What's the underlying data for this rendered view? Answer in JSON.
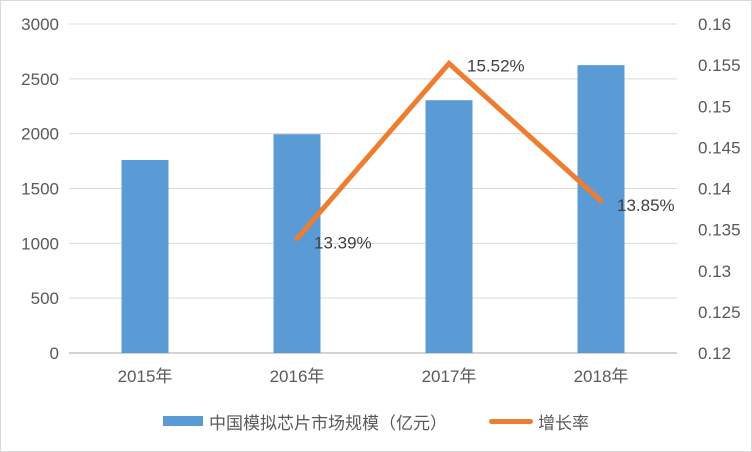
{
  "chart_data": {
    "type": "combo",
    "title": "",
    "categories": [
      "2015年",
      "2016年",
      "2017年",
      "2018年"
    ],
    "series": [
      {
        "name": "中国模拟芯片市场规模（亿元）",
        "type": "bar",
        "axis": "left",
        "color": "#5B9BD5",
        "values": [
          1760,
          1995,
          2305,
          2625
        ]
      },
      {
        "name": "增长率",
        "type": "line",
        "axis": "right",
        "color": "#ED7D31",
        "values": [
          null,
          0.1339,
          0.1552,
          0.1385
        ],
        "point_labels": [
          null,
          "13.39%",
          "15.52%",
          "13.85%"
        ]
      }
    ],
    "left_axis": {
      "range": [
        0,
        3000
      ],
      "ticks": [
        0,
        500,
        1000,
        1500,
        2000,
        2500,
        3000
      ]
    },
    "right_axis": {
      "range": [
        0.12,
        0.16
      ],
      "ticks": [
        0.12,
        0.125,
        0.13,
        0.135,
        0.14,
        0.145,
        0.15,
        0.155,
        0.16
      ]
    },
    "gridlines": "horizontal",
    "legend_position": "bottom"
  },
  "colors": {
    "bar": "#5B9BD5",
    "line": "#ED7D31",
    "grid": "#D9D9D9",
    "axis_line": "#D2D2D2",
    "tick_text": "#595959",
    "label_text": "#404040",
    "frame_border": "#D9D9D9",
    "background": "#FFFFFF"
  }
}
